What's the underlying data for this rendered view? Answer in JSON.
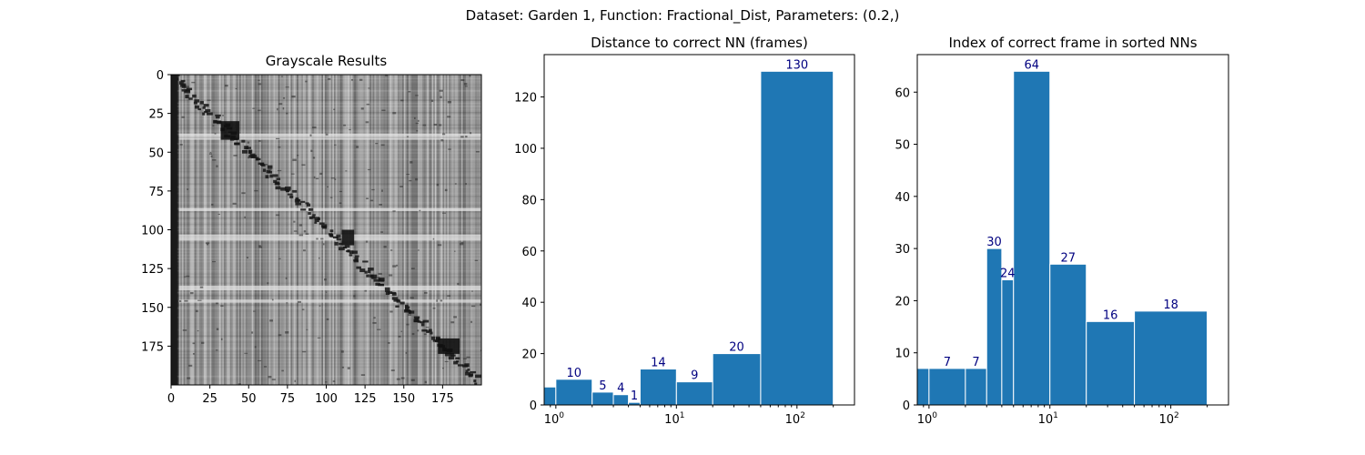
{
  "figure": {
    "suptitle": "Dataset:  Garden 1,  Function:  Fractional_Dist, Parameters: (0.2,)"
  },
  "chart_data": [
    {
      "type": "heatmap",
      "title": "Grayscale Results",
      "colormap": "gray",
      "description_rows": 200,
      "description_cols": 200,
      "x_ticks": [
        0,
        25,
        50,
        75,
        100,
        125,
        150,
        175
      ],
      "y_ticks": [
        0,
        25,
        50,
        75,
        100,
        125,
        150,
        175
      ],
      "xlim": [
        0,
        200
      ],
      "ylim": [
        200,
        0
      ]
    },
    {
      "type": "bar",
      "title": "Distance to correct NN (frames)",
      "x_scale": "log",
      "bins": [
        [
          0,
          1
        ],
        [
          1,
          2
        ],
        [
          2,
          3
        ],
        [
          3,
          4
        ],
        [
          4,
          5
        ],
        [
          5,
          10
        ],
        [
          10,
          20
        ],
        [
          20,
          50
        ],
        [
          50,
          200
        ]
      ],
      "values": [
        7,
        10,
        5,
        4,
        1,
        14,
        9,
        20,
        130
      ],
      "labels": [
        "",
        "10",
        "5",
        "4",
        "1",
        "14",
        "9",
        "20",
        "130"
      ],
      "y_ticks": [
        0,
        20,
        40,
        60,
        80,
        100,
        120
      ],
      "ylim": [
        0,
        136.5
      ],
      "xlim": [
        0.8,
        300
      ],
      "x_tick_values": [
        1,
        10,
        100
      ]
    },
    {
      "type": "bar",
      "title": "Index of correct frame in sorted NNs",
      "x_scale": "log",
      "bins": [
        [
          0,
          1
        ],
        [
          1,
          2
        ],
        [
          2,
          3
        ],
        [
          3,
          4
        ],
        [
          4,
          5
        ],
        [
          5,
          10
        ],
        [
          10,
          20
        ],
        [
          20,
          50
        ],
        [
          50,
          200
        ]
      ],
      "values": [
        7,
        7,
        7,
        30,
        24,
        64,
        27,
        16,
        18
      ],
      "labels": [
        "",
        "7",
        "7",
        "30",
        "24",
        "64",
        "27",
        "16",
        "18"
      ],
      "y_ticks": [
        0,
        10,
        20,
        30,
        40,
        50,
        60
      ],
      "ylim": [
        0,
        67.2
      ],
      "xlim": [
        0.8,
        300
      ],
      "x_tick_values": [
        1,
        10,
        100
      ]
    }
  ]
}
